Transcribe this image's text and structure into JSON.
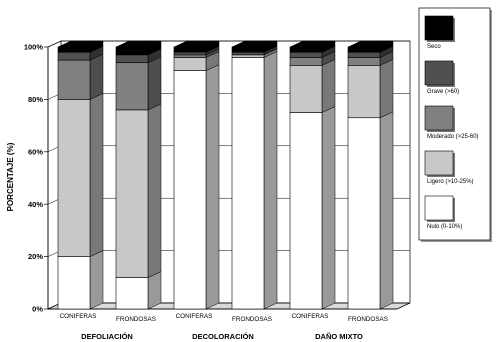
{
  "chart_data": {
    "type": "bar",
    "stacked": "percent",
    "three_d": true,
    "title": "",
    "xlabel": "",
    "ylabel": "PORCENTAJE (%)",
    "ylim": [
      0,
      100
    ],
    "yticks": [
      0,
      20,
      40,
      60,
      80,
      100
    ],
    "ytick_labels": [
      "0%",
      "20%",
      "40%",
      "60%",
      "80%",
      "100%"
    ],
    "categories": [
      "CONIFERAS",
      "FRONDOSAS",
      "CONIFERAS",
      "FRONDOSAS",
      "CONIFERAS",
      "FRONDOSAS"
    ],
    "groups": [
      {
        "label": "DEFOLIACIÓN",
        "n_categories": 2
      },
      {
        "label": "DECOLORACIÓN",
        "n_categories": 2
      },
      {
        "label": "DAÑO MIXTO",
        "n_categories": 2
      }
    ],
    "series": [
      {
        "name": "Nulo (0-10%)",
        "color": "#ffffff",
        "values": [
          20,
          12,
          91,
          96,
          75,
          73
        ]
      },
      {
        "name": "Ligero (>10-25%)",
        "color": "#c8c8c8",
        "values": [
          60,
          64,
          5,
          1,
          18,
          20
        ]
      },
      {
        "name": "Moderado (>25-60)",
        "color": "#808080",
        "values": [
          15,
          18,
          1,
          0,
          3,
          3
        ]
      },
      {
        "name": "Grave (>60)",
        "color": "#505050",
        "values": [
          3,
          3,
          1,
          1,
          2,
          2
        ]
      },
      {
        "name": "Seco",
        "color": "#000000",
        "values": [
          2,
          3,
          2,
          2,
          2,
          2
        ]
      }
    ],
    "grid": true,
    "legend_position": "right"
  }
}
